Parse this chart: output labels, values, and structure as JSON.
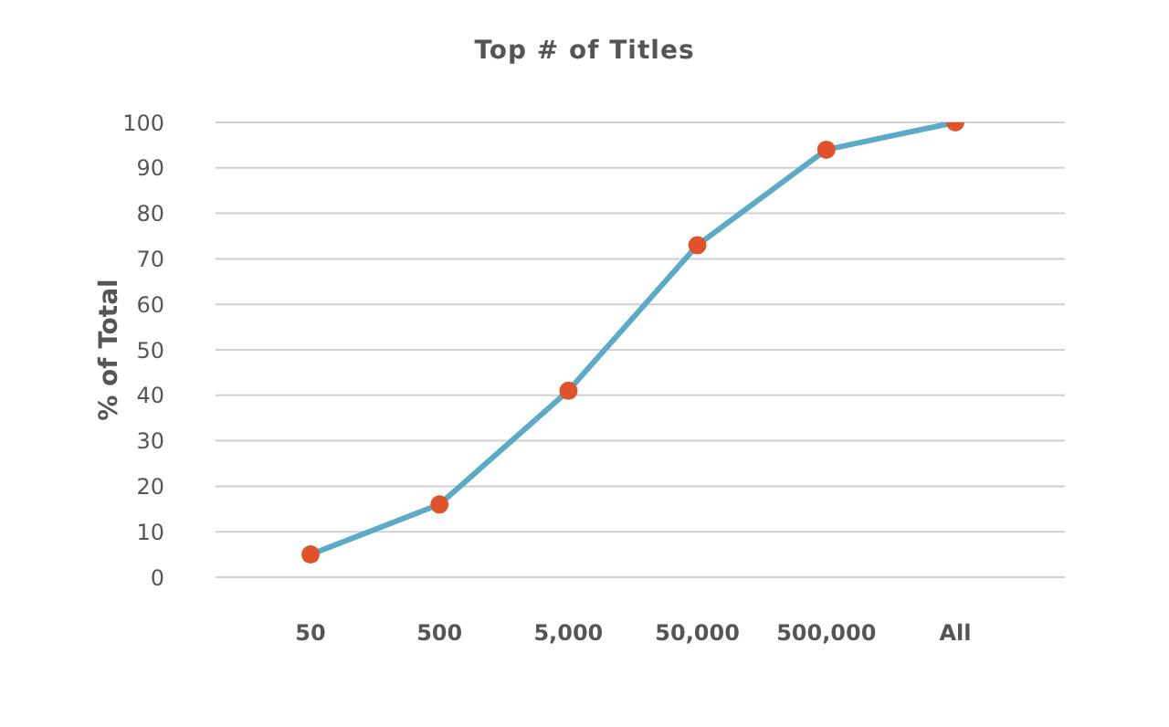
{
  "chart_data": {
    "type": "line",
    "title": "Top # of Titles",
    "ylabel": "% of Total",
    "categories": [
      "50",
      "500",
      "5,000",
      "50,000",
      "500,000",
      "All"
    ],
    "series": [
      {
        "color": "#5aaac8",
        "colors": [
          "#e0522a",
          "#e0522a",
          "#e0522a",
          "#e0522a",
          "#e0522a",
          "#e0522a"
        ],
        "values": [
          5,
          16,
          41,
          73,
          94,
          100
        ]
      }
    ],
    "ylim": [
      0,
      100
    ],
    "yticks": [
      0,
      10,
      20,
      30,
      40,
      50,
      60,
      70,
      80,
      90,
      100
    ],
    "grid": "y",
    "marker": "circle",
    "line_style": "solid"
  }
}
